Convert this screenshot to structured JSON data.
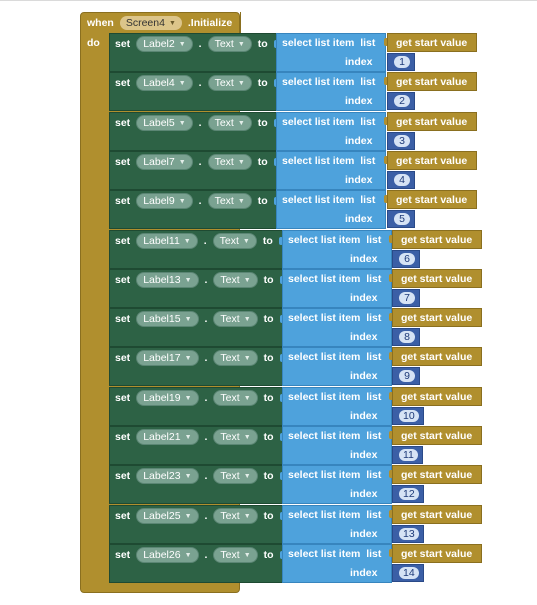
{
  "event": {
    "when_label": "when",
    "component": "Screen4",
    "event_name": ".Initialize",
    "do_label": "do"
  },
  "keywords": {
    "set": "set",
    "dot": ".",
    "to": "to",
    "select_list_item": "select list item",
    "list": "list",
    "index": "index",
    "get_start_value": "get start value"
  },
  "rows": [
    {
      "label": "Label2",
      "property": "Text",
      "index": "1"
    },
    {
      "label": "Label4",
      "property": "Text",
      "index": "2"
    },
    {
      "label": "Label5",
      "property": "Text",
      "index": "3"
    },
    {
      "label": "Label7",
      "property": "Text",
      "index": "4"
    },
    {
      "label": "Label9",
      "property": "Text",
      "index": "5"
    },
    {
      "label": "Label11",
      "property": "Text",
      "index": "6"
    },
    {
      "label": "Label13",
      "property": "Text",
      "index": "7"
    },
    {
      "label": "Label15",
      "property": "Text",
      "index": "8"
    },
    {
      "label": "Label17",
      "property": "Text",
      "index": "9"
    },
    {
      "label": "Label19",
      "property": "Text",
      "index": "10"
    },
    {
      "label": "Label21",
      "property": "Text",
      "index": "11"
    },
    {
      "label": "Label23",
      "property": "Text",
      "index": "12"
    },
    {
      "label": "Label25",
      "property": "Text",
      "index": "13"
    },
    {
      "label": "Label26",
      "property": "Text",
      "index": "14"
    }
  ]
}
